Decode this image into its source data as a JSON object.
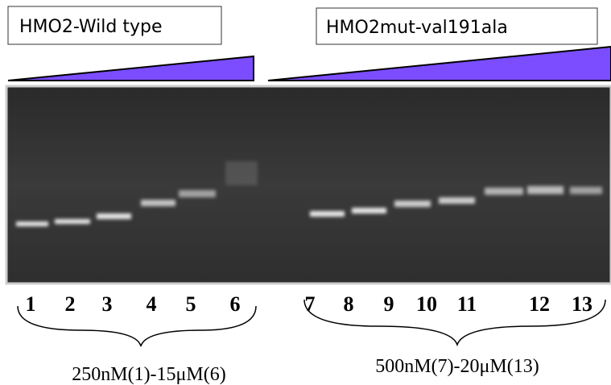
{
  "header": {
    "left_label": "HMO2-Wild type",
    "right_label": "HMO2mut-val191ala"
  },
  "lanes": [
    "1",
    "2",
    "3",
    "4",
    "5",
    "6",
    "7",
    "8",
    "9",
    "10",
    "11",
    "12",
    "13"
  ],
  "captions": {
    "left": "250nM(1)-15μM(6)",
    "right": "500nM(7)-20μM(13)"
  }
}
